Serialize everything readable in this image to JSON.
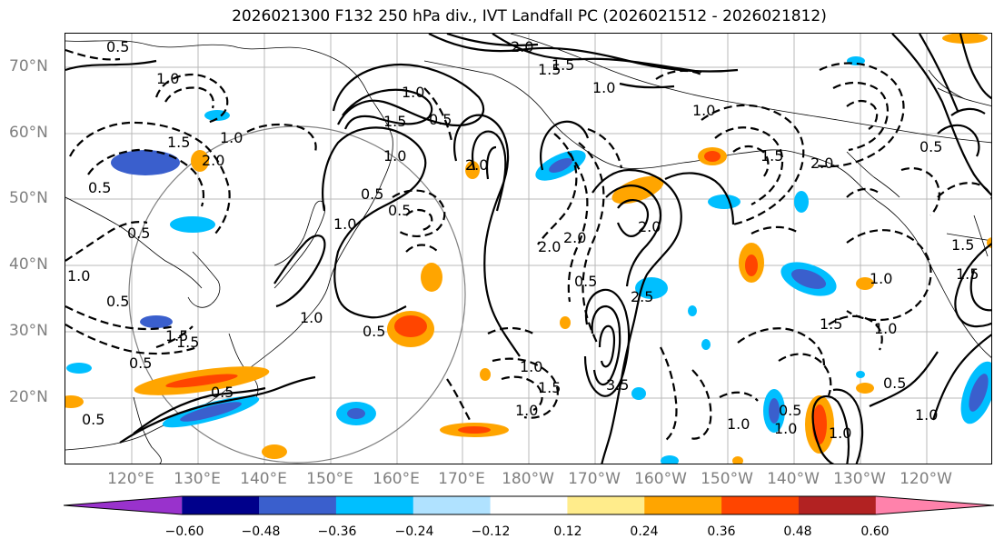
{
  "title": "2026021300 F132 250 hPa div., IVT Landfall PC (2026021512 - 2026021812)",
  "lat_labels": [
    "70°N",
    "60°N",
    "50°N",
    "40°N",
    "30°N",
    "20°N"
  ],
  "lon_labels": [
    "120°E",
    "130°E",
    "140°E",
    "150°E",
    "160°E",
    "170°E",
    "180°W",
    "170°W",
    "160°W",
    "150°W",
    "140°W",
    "130°W",
    "120°W"
  ],
  "colorbar": {
    "labels": [
      "−0.60",
      "−0.48",
      "−0.36",
      "−0.24",
      "−0.12",
      "0.12",
      "0.24",
      "0.36",
      "0.48",
      "0.60"
    ],
    "colors": [
      "#9932cc",
      "#00008b",
      "#3a5fcd",
      "#00bfff",
      "#b0e2ff",
      "#ffffff",
      "#ffec8b",
      "#ffa500",
      "#ff4500",
      "#b22222",
      "#ff82ab"
    ]
  },
  "contour_labels": {
    "pos": [
      "2.0",
      "1.5",
      "1.0",
      "1.5",
      "2.0",
      "1.0",
      "0.5",
      "1.0",
      "0.5",
      "0.5",
      "2.0",
      "3.5",
      "2.0",
      "1.0",
      "1.5",
      "0.5",
      "2.5",
      "1.0",
      "0.5",
      "1.0",
      "1.0"
    ],
    "neg": [
      "1.0",
      "0.5",
      "1.0",
      "1.5",
      "2.0",
      "0.5",
      "0.5",
      "1.0",
      "0.5",
      "1.5",
      "0.5",
      "2.0",
      "1.5",
      "0.5",
      "1.0",
      "1.5",
      "1.0",
      "1.0",
      "1.5",
      "1.0",
      "1.5",
      "2.0",
      "1.5",
      "0.5",
      "0.5",
      "1.0",
      "1.5",
      "1.0",
      "0.5",
      "0.5",
      "1.0"
    ]
  }
}
